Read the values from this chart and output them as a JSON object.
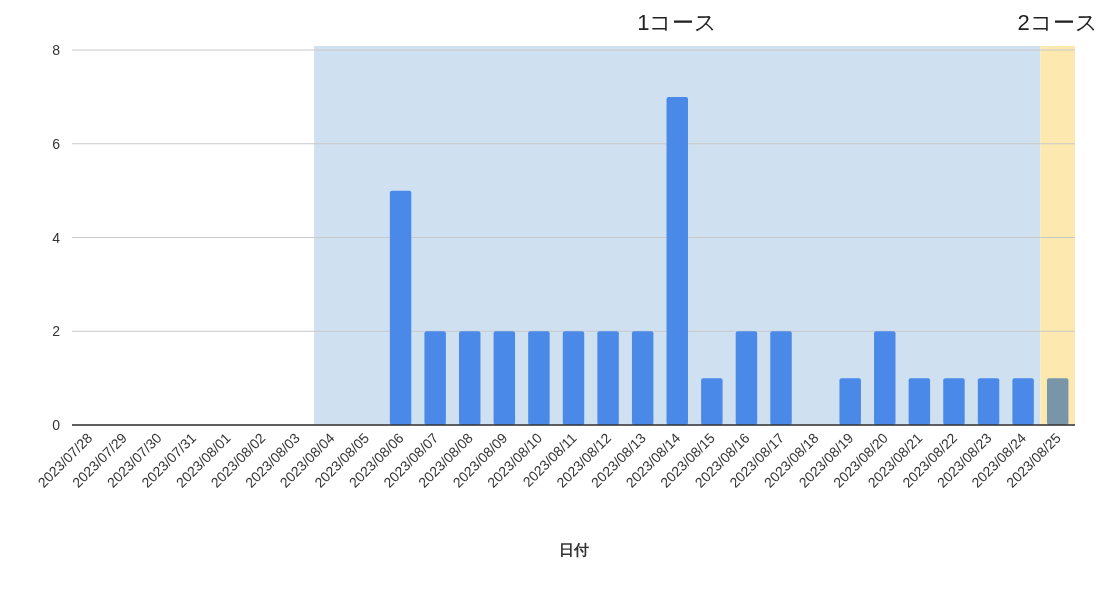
{
  "chart_data": {
    "type": "bar",
    "xlabel": "日付",
    "categories": [
      "2023/07/28",
      "2023/07/29",
      "2023/07/30",
      "2023/07/31",
      "2023/08/01",
      "2023/08/02",
      "2023/08/03",
      "2023/08/04",
      "2023/08/05",
      "2023/08/06",
      "2023/08/07",
      "2023/08/08",
      "2023/08/09",
      "2023/08/10",
      "2023/08/11",
      "2023/08/12",
      "2023/08/13",
      "2023/08/14",
      "2023/08/15",
      "2023/08/16",
      "2023/08/17",
      "2023/08/18",
      "2023/08/19",
      "2023/08/20",
      "2023/08/21",
      "2023/08/22",
      "2023/08/23",
      "2023/08/24",
      "2023/08/25"
    ],
    "values": [
      0,
      0,
      0,
      0,
      0,
      0,
      0,
      0,
      0,
      5,
      2,
      2,
      2,
      2,
      2,
      2,
      2,
      7,
      1,
      2,
      2,
      0,
      1,
      2,
      1,
      1,
      1,
      1,
      1
    ],
    "colors": [
      "#4a89e8",
      "#4a89e8",
      "#4a89e8",
      "#4a89e8",
      "#4a89e8",
      "#4a89e8",
      "#4a89e8",
      "#4a89e8",
      "#4a89e8",
      "#4a89e8",
      "#4a89e8",
      "#4a89e8",
      "#4a89e8",
      "#4a89e8",
      "#4a89e8",
      "#4a89e8",
      "#4a89e8",
      "#4a89e8",
      "#4a89e8",
      "#4a89e8",
      "#4a89e8",
      "#4a89e8",
      "#4a89e8",
      "#4a89e8",
      "#4a89e8",
      "#4a89e8",
      "#4a89e8",
      "#4a89e8",
      "#7896a8"
    ],
    "ylim": [
      0,
      8
    ],
    "yticks": [
      0,
      2,
      4,
      6,
      8
    ],
    "grid": "y",
    "bands": [
      {
        "axis": "x",
        "from": "2023/08/04",
        "to": "2023/08/24",
        "label": "1コース",
        "color": "#cfe0f1"
      },
      {
        "axis": "x",
        "from": "2023/08/25",
        "to": "2023/08/25",
        "label": "2コース",
        "color": "#fde9b0"
      }
    ]
  }
}
